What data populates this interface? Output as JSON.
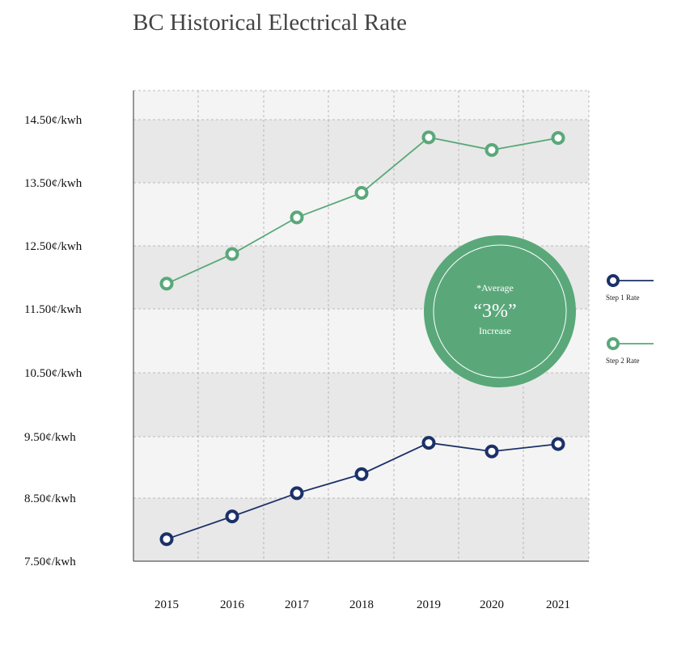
{
  "title": "BC Historical Electrical Rate",
  "chart_data": {
    "type": "line",
    "title": "BC Historical Electrical Rate",
    "categories": [
      "2015",
      "2016",
      "2017",
      "2018",
      "2019",
      "2020",
      "2021"
    ],
    "y_tick_labels": [
      "14.50¢/kwh",
      "13.50¢/kwh",
      "12.50¢/kwh",
      "11.50¢/kwh",
      "10.50¢/kwh",
      "9.50¢/kwh",
      "8.50¢/kwh",
      "7.50¢/kwh"
    ],
    "series": [
      {
        "name": "Step 1 Rate",
        "color": "#1b3168",
        "values": [
          7.85,
          8.21,
          8.58,
          8.89,
          9.4,
          9.26,
          9.38
        ]
      },
      {
        "name": "Step 2 Rate",
        "color": "#5aa87a",
        "values": [
          11.9,
          12.37,
          12.95,
          13.34,
          14.22,
          14.02,
          14.21
        ]
      }
    ],
    "grid": true,
    "legend_position": "right",
    "annotation": {
      "line1": "*Average",
      "line2": "“3%”",
      "line3": "Increase",
      "color": "#5aa87a"
    }
  }
}
